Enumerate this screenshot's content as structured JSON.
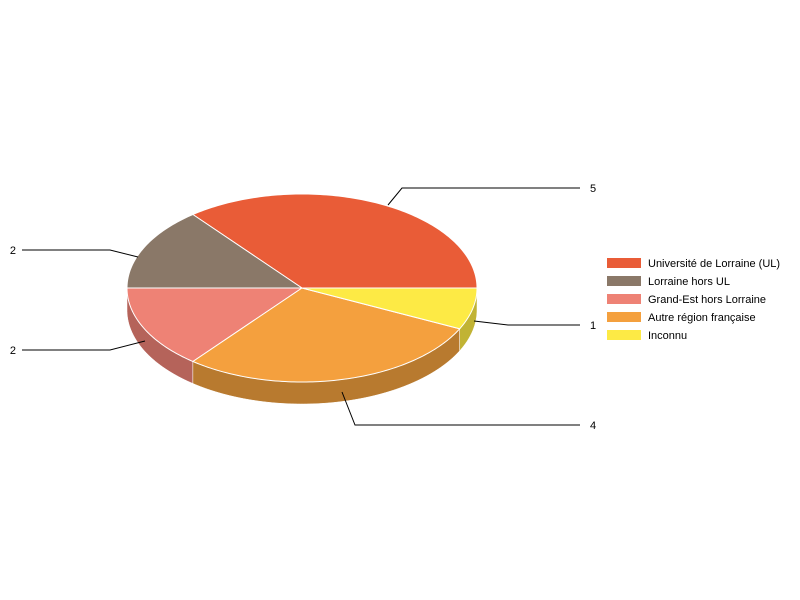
{
  "chart_data": {
    "type": "pie",
    "style": "3d",
    "legend_position": "right",
    "categories": [
      "Université de Lorraine (UL)",
      "Lorraine hors UL",
      "Grand-Est hors Lorraine",
      "Autre région française",
      "Inconnu"
    ],
    "values": [
      5,
      2,
      2,
      4,
      1
    ],
    "labels": [
      "5",
      "2",
      "2",
      "4",
      "1"
    ],
    "colors": [
      "#E95C37",
      "#8A7868",
      "#EE8275",
      "#F4A03E",
      "#FDEA45"
    ],
    "side_colors": [
      "#B0452A",
      "#68594D",
      "#B5635A",
      "#B87A2F",
      "#C1B334"
    ]
  }
}
